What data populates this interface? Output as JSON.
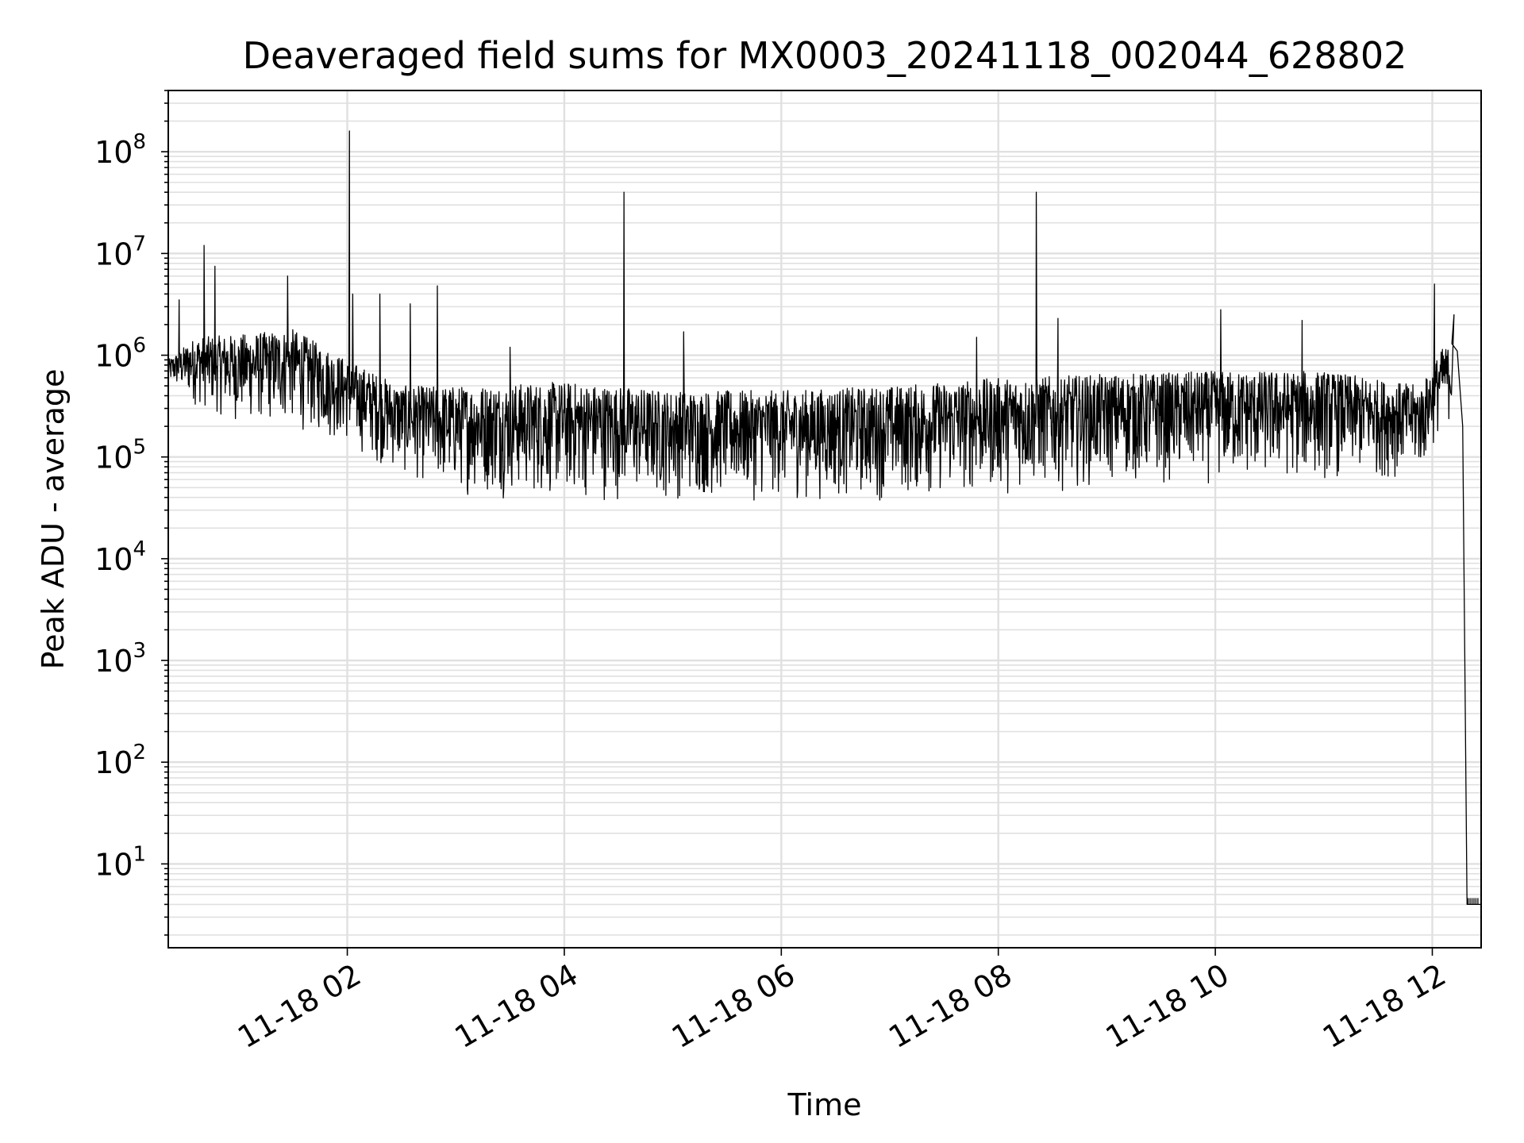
{
  "chart_data": {
    "type": "line",
    "title": "Deaveraged field sums for MX0003_20241118_002044_628802",
    "xlabel": "Time",
    "ylabel": "Peak ADU - average",
    "yscale": "log",
    "ylim": [
      1.5,
      400000000
    ],
    "xlim_hours": [
      0.35,
      12.45
    ],
    "grid": true,
    "line_color": "#000000",
    "grid_color": "#e0e0e0",
    "x_ticks": [
      {
        "hour": 2,
        "label": "11-18 02"
      },
      {
        "hour": 4,
        "label": "11-18 04"
      },
      {
        "hour": 6,
        "label": "11-18 06"
      },
      {
        "hour": 8,
        "label": "11-18 08"
      },
      {
        "hour": 10,
        "label": "11-18 10"
      },
      {
        "hour": 12,
        "label": "11-18 12"
      }
    ],
    "y_ticks": [
      {
        "value": 10,
        "base": "10",
        "exp": "1"
      },
      {
        "value": 100,
        "base": "10",
        "exp": "2"
      },
      {
        "value": 1000,
        "base": "10",
        "exp": "3"
      },
      {
        "value": 10000,
        "base": "10",
        "exp": "4"
      },
      {
        "value": 100000,
        "base": "10",
        "exp": "5"
      },
      {
        "value": 1000000,
        "base": "10",
        "exp": "6"
      },
      {
        "value": 10000000,
        "base": "10",
        "exp": "7"
      },
      {
        "value": 100000000,
        "base": "10",
        "exp": "8"
      }
    ],
    "series": [
      {
        "envelope": [
          {
            "hour": 0.35,
            "low": 500000,
            "high": 900000
          },
          {
            "hour": 0.6,
            "low": 300000,
            "high": 1500000
          },
          {
            "hour": 1.0,
            "low": 200000,
            "high": 1600000
          },
          {
            "hour": 1.5,
            "low": 180000,
            "high": 1800000
          },
          {
            "hour": 2.0,
            "low": 120000,
            "high": 900000
          },
          {
            "hour": 2.5,
            "low": 60000,
            "high": 500000
          },
          {
            "hour": 3.0,
            "low": 40000,
            "high": 500000
          },
          {
            "hour": 4.0,
            "low": 35000,
            "high": 550000
          },
          {
            "hour": 5.0,
            "low": 35000,
            "high": 450000
          },
          {
            "hour": 6.0,
            "low": 35000,
            "high": 450000
          },
          {
            "hour": 7.0,
            "low": 35000,
            "high": 500000
          },
          {
            "hour": 8.0,
            "low": 40000,
            "high": 600000
          },
          {
            "hour": 9.0,
            "low": 50000,
            "high": 650000
          },
          {
            "hour": 10.0,
            "low": 50000,
            "high": 700000
          },
          {
            "hour": 11.0,
            "low": 55000,
            "high": 700000
          },
          {
            "hour": 11.9,
            "low": 60000,
            "high": 500000
          },
          {
            "hour": 12.1,
            "low": 200000,
            "high": 1200000
          }
        ],
        "spikes": [
          {
            "hour": 0.45,
            "value": 3500000
          },
          {
            "hour": 0.68,
            "value": 12000000
          },
          {
            "hour": 0.78,
            "value": 7500000
          },
          {
            "hour": 1.45,
            "value": 6000000
          },
          {
            "hour": 2.02,
            "value": 160000000
          },
          {
            "hour": 2.05,
            "value": 4000000
          },
          {
            "hour": 2.3,
            "value": 4000000
          },
          {
            "hour": 2.58,
            "value": 3200000
          },
          {
            "hour": 2.83,
            "value": 4800000
          },
          {
            "hour": 3.5,
            "value": 1200000
          },
          {
            "hour": 4.55,
            "value": 40000000
          },
          {
            "hour": 5.1,
            "value": 1700000
          },
          {
            "hour": 7.8,
            "value": 1500000
          },
          {
            "hour": 8.35,
            "value": 40000000
          },
          {
            "hour": 8.55,
            "value": 2300000
          },
          {
            "hour": 10.05,
            "value": 2800000
          },
          {
            "hour": 10.8,
            "value": 2200000
          },
          {
            "hour": 12.02,
            "value": 5000000
          },
          {
            "hour": 12.2,
            "value": 2500000
          }
        ],
        "tail": [
          {
            "hour": 12.18,
            "value": 1300000
          },
          {
            "hour": 12.23,
            "value": 1100000
          },
          {
            "hour": 12.28,
            "value": 200000
          },
          {
            "hour": 12.32,
            "value": 4
          },
          {
            "hour": 12.45,
            "value": 4
          }
        ]
      }
    ]
  }
}
